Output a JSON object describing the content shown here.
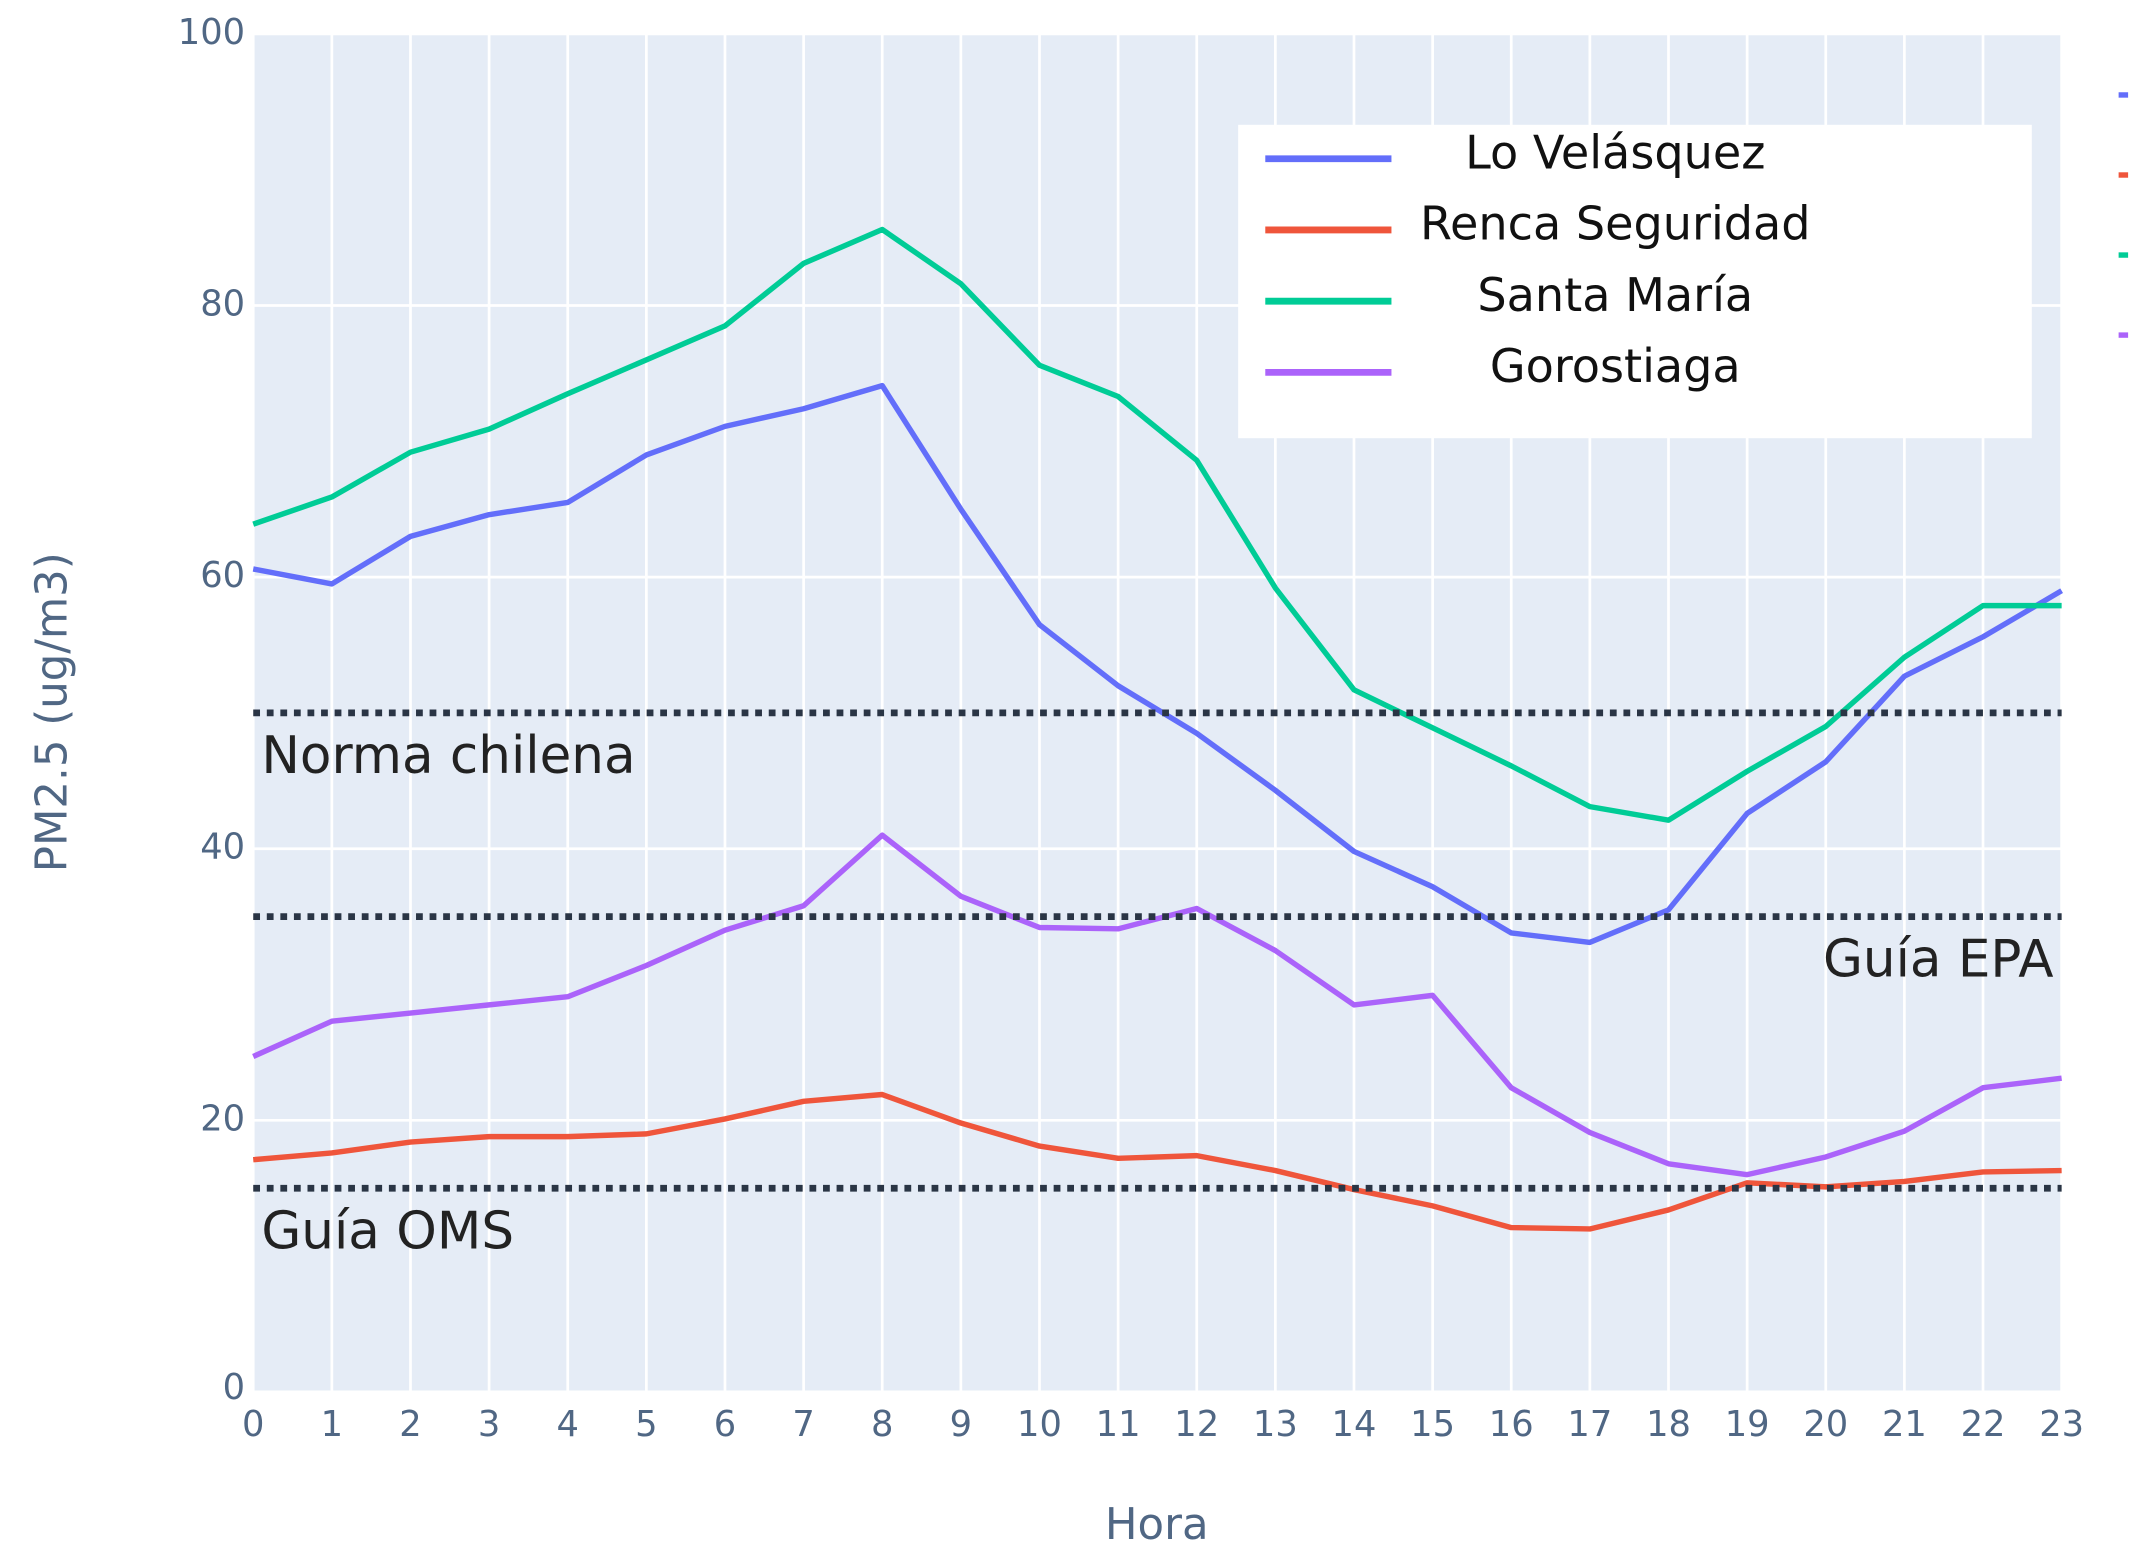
{
  "chart_data": {
    "type": "line",
    "x_label": "Hora",
    "y_label": "PM2.5 (ug/m3)",
    "x": [
      0,
      1,
      2,
      3,
      4,
      5,
      6,
      7,
      8,
      9,
      10,
      11,
      12,
      13,
      14,
      15,
      16,
      17,
      18,
      19,
      20,
      21,
      22,
      23
    ],
    "xlim": [
      0,
      23
    ],
    "xticks": [
      0,
      1,
      2,
      3,
      4,
      5,
      6,
      7,
      8,
      9,
      10,
      11,
      12,
      13,
      14,
      15,
      16,
      17,
      18,
      19,
      20,
      21,
      22,
      23
    ],
    "ylim": [
      0,
      100
    ],
    "yticks": [
      0,
      20,
      40,
      60,
      80,
      100
    ],
    "grid": true,
    "legend_position": "top right",
    "series": [
      {
        "name": "Lo Velásquez",
        "color": "#636efa",
        "values": [
          60.6,
          59.5,
          63,
          64.6,
          65.5,
          69,
          71.1,
          72.4,
          74.1,
          65,
          56.5,
          52,
          48.5,
          44.3,
          39.8,
          37.2,
          33.8,
          33.1,
          35.5,
          42.6,
          46.4,
          52.7,
          55.6,
          59
        ]
      },
      {
        "name": "Renca Seguridad",
        "color": "#ef553b",
        "values": [
          17.1,
          17.6,
          18.4,
          18.8,
          18.8,
          19,
          20.1,
          21.4,
          21.9,
          19.8,
          18.1,
          17.2,
          17.4,
          16.3,
          14.9,
          13.7,
          12.1,
          12,
          13.4,
          15.4,
          15.1,
          15.5,
          16.2,
          16.3
        ]
      },
      {
        "name": "Santa María",
        "color": "#00cc96",
        "values": [
          63.9,
          65.9,
          69.2,
          70.9,
          73.5,
          76,
          78.5,
          83.1,
          85.6,
          81.6,
          75.6,
          73.3,
          68.6,
          59.2,
          51.7,
          48.9,
          46.1,
          43.1,
          42.1,
          45.7,
          49,
          54.1,
          57.9,
          57.9
        ]
      },
      {
        "name": "Gorostiaga",
        "color": "#ab63fa",
        "values": [
          24.7,
          27.3,
          27.9,
          28.5,
          29.1,
          31.4,
          34,
          35.8,
          41,
          36.5,
          34.2,
          34.1,
          35.6,
          32.5,
          28.5,
          29.2,
          22.4,
          19.1,
          16.8,
          16,
          17.3,
          19.2,
          22.4,
          23.1
        ]
      }
    ],
    "reference_lines": [
      {
        "value": 50,
        "label": "Norma chilena",
        "label_position": "bottom left"
      },
      {
        "value": 35,
        "label": "Guía EPA",
        "label_position": "bottom right"
      },
      {
        "value": 15,
        "label": "Guía OMS",
        "label_position": "bottom left"
      }
    ],
    "reference_line_color": "#2a3545"
  }
}
